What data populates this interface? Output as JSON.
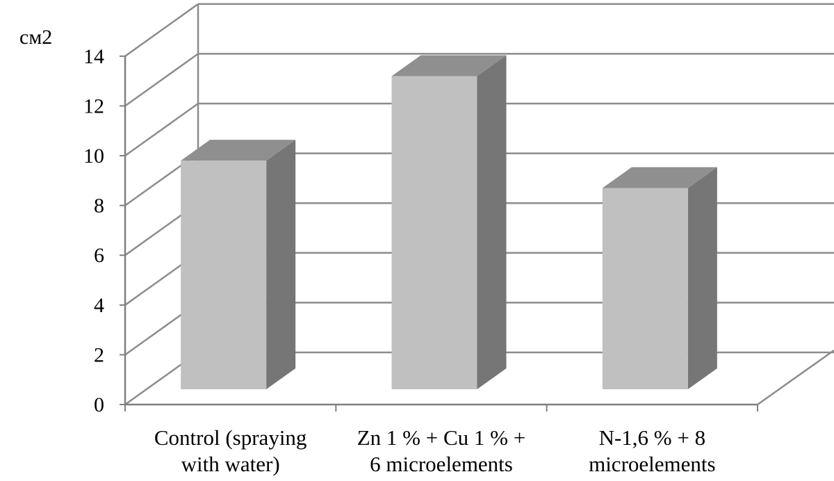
{
  "chart_data": {
    "type": "bar",
    "style": "3d-column",
    "title": "",
    "xlabel": "",
    "ylabel": "см2",
    "ylim": [
      0,
      14
    ],
    "y_ticks": [
      "0",
      "2",
      "4",
      "6",
      "8",
      "10",
      "12",
      "14"
    ],
    "grid": true,
    "legend": "none",
    "categories": [
      [
        "Control (spraying",
        "with water)"
      ],
      [
        "Zn 1 % + Cu 1 % +",
        "6 microelements"
      ],
      [
        "N-1,6 % + 8",
        "microelements"
      ]
    ],
    "values": [
      9.8,
      13.2,
      8.7
    ],
    "colors": {
      "bar_front": "#c0c0c0",
      "bar_top": "#8f8f8f",
      "bar_side": "#767676",
      "grid": "#8c8c8c",
      "axis": "#7f7f7f",
      "text": "#000000"
    }
  }
}
